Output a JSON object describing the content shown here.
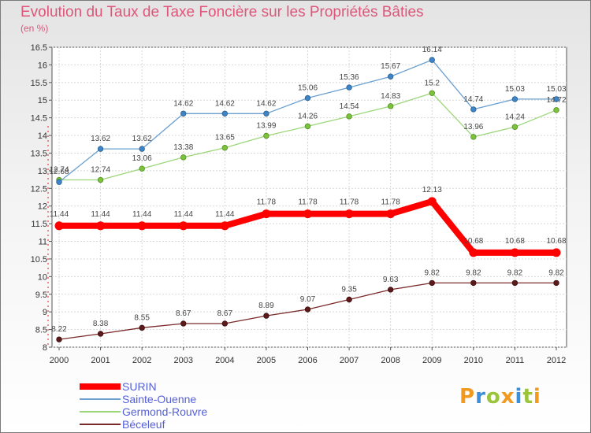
{
  "header": {
    "title": "Evolution du Taux de Taxe Foncière sur les Propriétés Bâties",
    "subtitle": "(en %)"
  },
  "logo": {
    "text": "Proxiti"
  },
  "chart_data": {
    "type": "line",
    "title": "Evolution du Taux de Taxe Foncière sur les Propriétés Bâties",
    "subtitle": "(en %)",
    "xlabel": "",
    "ylabel": "",
    "ylim": [
      8,
      16.5
    ],
    "grid": true,
    "legend_position": "bottom-left",
    "x": [
      "2000",
      "2001",
      "2002",
      "2003",
      "2004",
      "2005",
      "2006",
      "2007",
      "2008",
      "2009",
      "2010",
      "2011",
      "2012"
    ],
    "yticks": [
      "8",
      "8.5",
      "9",
      "9.5",
      "10",
      "10.5",
      "11",
      "11.5",
      "12",
      "12.5",
      "13",
      "13.5",
      "14",
      "14.5",
      "15",
      "15.5",
      "16",
      "16.5"
    ],
    "series": [
      {
        "name": "SURIN",
        "color": "#ff0000",
        "values": [
          11.44,
          11.44,
          11.44,
          11.44,
          11.44,
          11.78,
          11.78,
          11.78,
          11.78,
          12.13,
          10.68,
          10.68,
          10.68
        ],
        "labels": [
          "11.44",
          "11.44",
          "11.44",
          "11.44",
          "11.44",
          "11.78",
          "11.78",
          "11.78",
          "11.78",
          "12.13",
          "10.68",
          "10.68",
          "10.68"
        ]
      },
      {
        "name": "Sainte-Ouenne",
        "color": "#6a9fd0",
        "values": [
          12.68,
          13.62,
          13.62,
          14.62,
          14.62,
          14.62,
          15.06,
          15.36,
          15.67,
          16.14,
          14.74,
          15.03,
          15.03
        ],
        "labels": [
          "12.68",
          "13.62",
          "13.62",
          "14.62",
          "14.62",
          "14.62",
          "15.06",
          "15.36",
          "15.67",
          "16.14",
          "14.74",
          "15.03",
          "15.03"
        ]
      },
      {
        "name": "Germond-Rouvre",
        "color": "#9cd67a",
        "values": [
          12.74,
          12.74,
          13.06,
          13.38,
          13.65,
          13.99,
          14.26,
          14.54,
          14.83,
          15.2,
          13.96,
          14.24,
          14.72
        ],
        "labels": [
          "12.74",
          "12.74",
          "13.06",
          "13.38",
          "13.65",
          "13.99",
          "14.26",
          "14.54",
          "14.83",
          "15.2",
          "13.96",
          "14.24",
          "14.72"
        ]
      },
      {
        "name": "Béceleuf",
        "color": "#7a2a2a",
        "values": [
          8.22,
          8.38,
          8.55,
          8.67,
          8.67,
          8.89,
          9.07,
          9.35,
          9.63,
          9.82,
          9.82,
          9.82,
          9.82
        ],
        "labels": [
          "8.22",
          "8.38",
          "8.55",
          "8.67",
          "8.67",
          "8.89",
          "9.07",
          "9.35",
          "9.63",
          "9.82",
          "9.82",
          "9.82",
          "9.82"
        ]
      }
    ]
  }
}
